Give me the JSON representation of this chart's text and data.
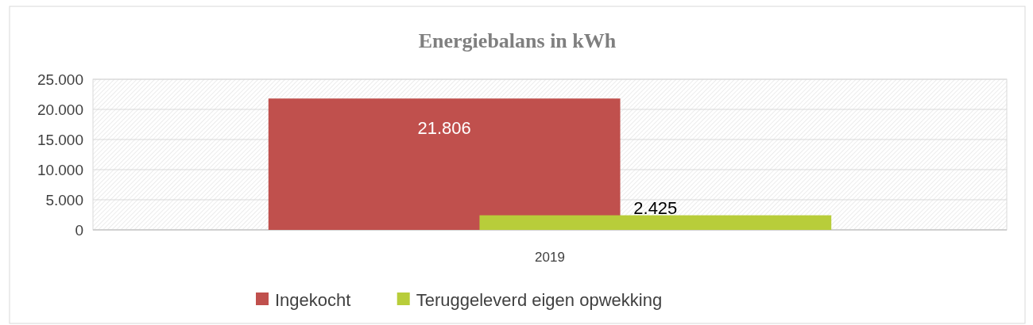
{
  "chart_data": {
    "type": "bar",
    "title": "Energiebalans in kWh",
    "categories": [
      "2019"
    ],
    "series": [
      {
        "name": "Ingekocht",
        "color": "#c0504d",
        "values": [
          21806
        ],
        "value_labels": [
          "21.806"
        ]
      },
      {
        "name": "Teruggeleverd eigen opwekking",
        "color": "#b8cd3a",
        "values": [
          2425
        ],
        "value_labels": [
          "2.425"
        ]
      }
    ],
    "ylim": [
      0,
      25000
    ],
    "yticks": [
      {
        "value": 0,
        "label": "0"
      },
      {
        "value": 5000,
        "label": "5.000"
      },
      {
        "value": 10000,
        "label": "10.000"
      },
      {
        "value": 15000,
        "label": "15.000"
      },
      {
        "value": 20000,
        "label": "20.000"
      },
      {
        "value": 25000,
        "label": "25.000"
      }
    ],
    "grid": "y",
    "legend": "bottom"
  }
}
